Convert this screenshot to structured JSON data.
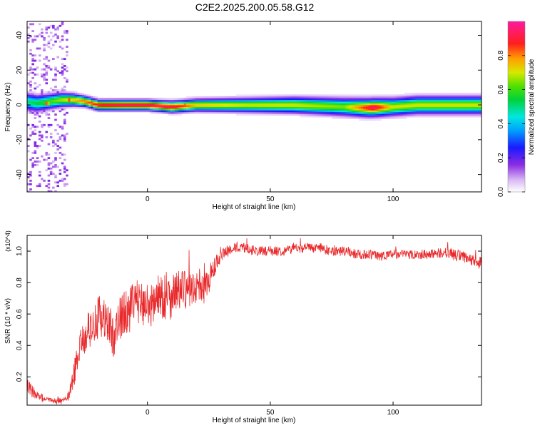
{
  "page": {
    "title": "C2E2.2025.200.05.58.G12"
  },
  "chart_data": [
    {
      "type": "heatmap",
      "title": "C2E2.2025.200.05.58.G12",
      "xlabel": "Height of straight line (km)",
      "ylabel": "Frequency (Hz)",
      "xlim": [
        -49,
        136
      ],
      "ylim": [
        -50,
        48
      ],
      "xticks": [
        0,
        50,
        100
      ],
      "xtick_labels": [
        "0",
        "50",
        "100"
      ],
      "yticks": [
        -40,
        -20,
        0,
        20,
        40
      ],
      "ytick_labels": [
        "-40",
        "-20",
        "0",
        "20",
        "40"
      ],
      "colorbar": {
        "label": "Normalized spectral amplitude",
        "range": [
          0,
          1
        ],
        "ticks": [
          0,
          0.2,
          0.4,
          0.6,
          0.8
        ],
        "tick_labels": [
          "0.0",
          "0.2",
          "0.4",
          "0.6",
          "0.8"
        ],
        "colormap": "rainbow (white-violet-blue-cyan-green-yellow-red-magenta)"
      },
      "ridge": {
        "description": "dominant frequency band centred near 0 Hz across all heights",
        "center_freq": [
          [
            -49,
            2
          ],
          [
            -45,
            1
          ],
          [
            -40,
            2
          ],
          [
            -35,
            3
          ],
          [
            -30,
            3
          ],
          [
            -25,
            2
          ],
          [
            -20,
            0
          ],
          [
            -10,
            0
          ],
          [
            0,
            0
          ],
          [
            10,
            -1
          ],
          [
            20,
            0
          ],
          [
            40,
            0
          ],
          [
            60,
            0
          ],
          [
            80,
            -1
          ],
          [
            90,
            -1.5
          ],
          [
            100,
            -1
          ],
          [
            110,
            0
          ],
          [
            136,
            0
          ]
        ],
        "half_width": [
          [
            -49,
            5
          ],
          [
            -35,
            4
          ],
          [
            -25,
            3
          ],
          [
            0,
            3
          ],
          [
            40,
            4
          ],
          [
            80,
            5
          ],
          [
            136,
            5
          ]
        ],
        "peak_amplitude": [
          [
            -49,
            0.5
          ],
          [
            -40,
            0.6
          ],
          [
            -30,
            0.75
          ],
          [
            -20,
            0.9
          ],
          [
            -10,
            0.95
          ],
          [
            0,
            0.95
          ],
          [
            10,
            0.95
          ],
          [
            20,
            0.75
          ],
          [
            40,
            0.7
          ],
          [
            60,
            0.7
          ],
          [
            80,
            0.65
          ],
          [
            92,
            0.95
          ],
          [
            100,
            0.7
          ],
          [
            120,
            0.7
          ],
          [
            136,
            0.7
          ]
        ],
        "hot_spots": [
          [
            -41,
            1,
            0.95
          ],
          [
            -32,
            3,
            0.95
          ],
          [
            -25,
            2,
            0.95
          ],
          [
            -18,
            0,
            0.98
          ],
          [
            -12,
            0,
            0.99
          ],
          [
            0,
            0,
            0.97
          ],
          [
            7,
            -1,
            0.98
          ],
          [
            10,
            -1,
            0.98
          ],
          [
            15,
            0,
            0.95
          ],
          [
            24,
            0,
            0.8
          ],
          [
            90,
            -1,
            0.95
          ],
          [
            94,
            -1,
            0.9
          ]
        ]
      },
      "scatter_region": {
        "description": "sparse violet noise at low heights spanning full frequency range",
        "x_range": [
          -49,
          -32
        ],
        "y_range": [
          -50,
          48
        ],
        "amplitude": 0.1
      }
    },
    {
      "type": "line",
      "xlabel": "Height of straight line (km)",
      "ylabel": "SNR (10 * v/v)",
      "y_multiplier": "(x10^4)",
      "xlim": [
        -49,
        136
      ],
      "ylim": [
        0.02,
        1.1
      ],
      "xticks": [
        0,
        50,
        100
      ],
      "xtick_labels": [
        "0",
        "50",
        "100"
      ],
      "yticks": [
        0.2,
        0.4,
        0.6,
        0.8,
        1.0
      ],
      "ytick_labels": [
        "0.2",
        "0.4",
        "0.6",
        "0.8",
        "1.0"
      ],
      "series": [
        {
          "color": "#e8282a",
          "x": [
            -49,
            -47,
            -45,
            -42,
            -40,
            -38,
            -36,
            -34,
            -32,
            -30,
            -28,
            -26,
            -24,
            -22,
            -20,
            -17,
            -14,
            -12,
            -10,
            -7,
            -4,
            -1,
            2,
            5,
            8,
            11,
            14,
            17,
            20,
            23,
            26,
            28,
            30,
            32,
            35,
            40,
            45,
            50,
            55,
            60,
            65,
            70,
            75,
            80,
            85,
            90,
            95,
            100,
            105,
            110,
            115,
            120,
            125,
            130,
            136
          ],
          "y": [
            0.15,
            0.11,
            0.08,
            0.06,
            0.05,
            0.045,
            0.045,
            0.05,
            0.08,
            0.2,
            0.38,
            0.44,
            0.5,
            0.52,
            0.58,
            0.56,
            0.46,
            0.54,
            0.6,
            0.64,
            0.68,
            0.66,
            0.66,
            0.72,
            0.7,
            0.74,
            0.76,
            0.74,
            0.78,
            0.76,
            0.85,
            0.92,
            0.96,
            1.0,
            1.02,
            1.02,
            1.0,
            1.0,
            1.0,
            1.02,
            1.02,
            1.02,
            1.0,
            1.0,
            0.98,
            0.98,
            0.97,
            0.98,
            0.98,
            0.98,
            0.98,
            0.99,
            0.98,
            0.95,
            0.92
          ],
          "noise": [
            0.04,
            0.04,
            0.03,
            0.025,
            0.02,
            0.02,
            0.02,
            0.02,
            0.03,
            0.08,
            0.1,
            0.1,
            0.12,
            0.1,
            0.14,
            0.14,
            0.14,
            0.14,
            0.14,
            0.14,
            0.14,
            0.14,
            0.14,
            0.14,
            0.16,
            0.14,
            0.12,
            0.12,
            0.1,
            0.1,
            0.08,
            0.06,
            0.04,
            0.04,
            0.03,
            0.03,
            0.03,
            0.03,
            0.03,
            0.03,
            0.03,
            0.03,
            0.03,
            0.03,
            0.03,
            0.03,
            0.03,
            0.03,
            0.03,
            0.03,
            0.03,
            0.03,
            0.04,
            0.04,
            0.04
          ]
        }
      ]
    }
  ]
}
